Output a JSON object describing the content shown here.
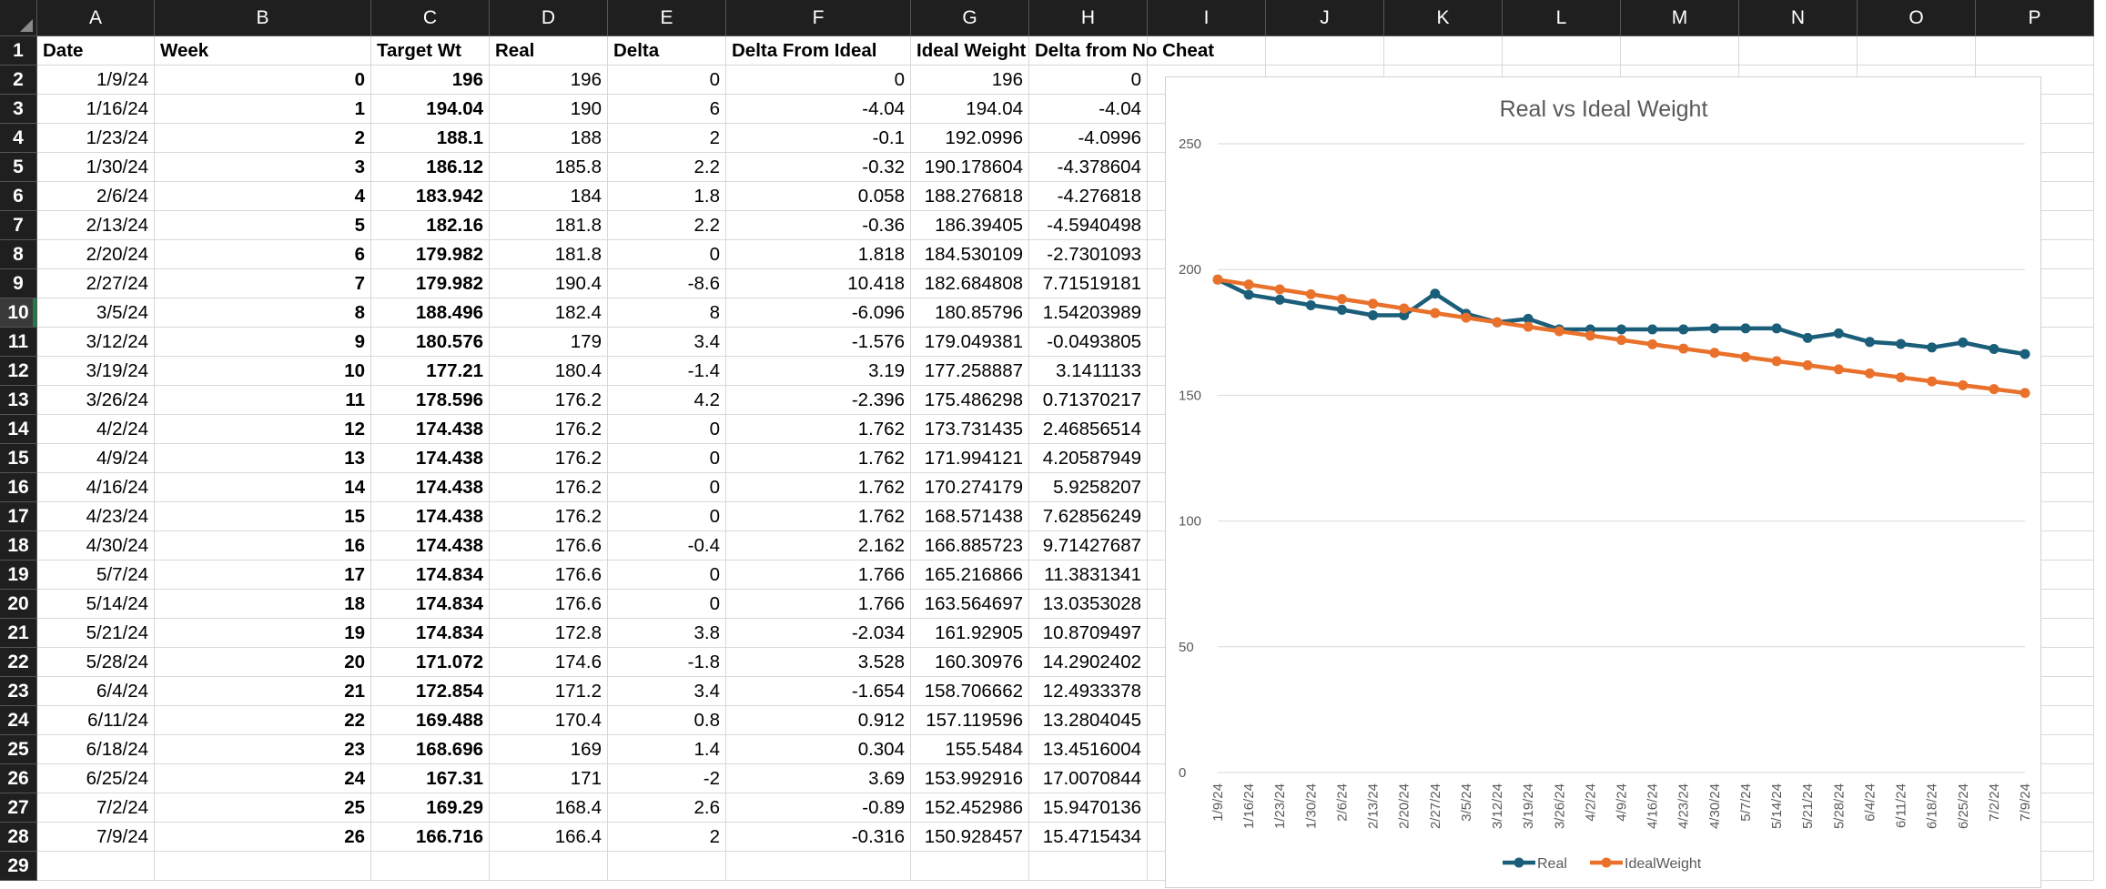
{
  "sheet": {
    "columns": [
      "A",
      "B",
      "C",
      "D",
      "E",
      "F",
      "G",
      "H",
      "I",
      "J",
      "K",
      "L",
      "M",
      "N",
      "O",
      "P"
    ],
    "headers": [
      "Date",
      "Week",
      "Target Wt",
      "Real",
      "Delta",
      "Delta From Ideal",
      "Ideal Weight",
      "Delta from No Cheat"
    ],
    "rows": [
      [
        "1/9/24",
        "0",
        "196",
        "196",
        "0",
        "0",
        "196",
        "0"
      ],
      [
        "1/16/24",
        "1",
        "194.04",
        "190",
        "6",
        "-4.04",
        "194.04",
        "-4.04"
      ],
      [
        "1/23/24",
        "2",
        "188.1",
        "188",
        "2",
        "-0.1",
        "192.0996",
        "-4.0996"
      ],
      [
        "1/30/24",
        "3",
        "186.12",
        "185.8",
        "2.2",
        "-0.32",
        "190.178604",
        "-4.378604"
      ],
      [
        "2/6/24",
        "4",
        "183.942",
        "184",
        "1.8",
        "0.058",
        "188.276818",
        "-4.276818"
      ],
      [
        "2/13/24",
        "5",
        "182.16",
        "181.8",
        "2.2",
        "-0.36",
        "186.39405",
        "-4.5940498"
      ],
      [
        "2/20/24",
        "6",
        "179.982",
        "181.8",
        "0",
        "1.818",
        "184.530109",
        "-2.7301093"
      ],
      [
        "2/27/24",
        "7",
        "179.982",
        "190.4",
        "-8.6",
        "10.418",
        "182.684808",
        "7.71519181"
      ],
      [
        "3/5/24",
        "8",
        "188.496",
        "182.4",
        "8",
        "-6.096",
        "180.85796",
        "1.54203989"
      ],
      [
        "3/12/24",
        "9",
        "180.576",
        "179",
        "3.4",
        "-1.576",
        "179.049381",
        "-0.0493805"
      ],
      [
        "3/19/24",
        "10",
        "177.21",
        "180.4",
        "-1.4",
        "3.19",
        "177.258887",
        "3.1411133"
      ],
      [
        "3/26/24",
        "11",
        "178.596",
        "176.2",
        "4.2",
        "-2.396",
        "175.486298",
        "0.71370217"
      ],
      [
        "4/2/24",
        "12",
        "174.438",
        "176.2",
        "0",
        "1.762",
        "173.731435",
        "2.46856514"
      ],
      [
        "4/9/24",
        "13",
        "174.438",
        "176.2",
        "0",
        "1.762",
        "171.994121",
        "4.20587949"
      ],
      [
        "4/16/24",
        "14",
        "174.438",
        "176.2",
        "0",
        "1.762",
        "170.274179",
        "5.9258207"
      ],
      [
        "4/23/24",
        "15",
        "174.438",
        "176.2",
        "0",
        "1.762",
        "168.571438",
        "7.62856249"
      ],
      [
        "4/30/24",
        "16",
        "174.438",
        "176.6",
        "-0.4",
        "2.162",
        "166.885723",
        "9.71427687"
      ],
      [
        "5/7/24",
        "17",
        "174.834",
        "176.6",
        "0",
        "1.766",
        "165.216866",
        "11.3831341"
      ],
      [
        "5/14/24",
        "18",
        "174.834",
        "176.6",
        "0",
        "1.766",
        "163.564697",
        "13.0353028"
      ],
      [
        "5/21/24",
        "19",
        "174.834",
        "172.8",
        "3.8",
        "-2.034",
        "161.92905",
        "10.8709497"
      ],
      [
        "5/28/24",
        "20",
        "171.072",
        "174.6",
        "-1.8",
        "3.528",
        "160.30976",
        "14.2902402"
      ],
      [
        "6/4/24",
        "21",
        "172.854",
        "171.2",
        "3.4",
        "-1.654",
        "158.706662",
        "12.4933378"
      ],
      [
        "6/11/24",
        "22",
        "169.488",
        "170.4",
        "0.8",
        "0.912",
        "157.119596",
        "13.2804045"
      ],
      [
        "6/18/24",
        "23",
        "168.696",
        "169",
        "1.4",
        "0.304",
        "155.5484",
        "13.4516004"
      ],
      [
        "6/25/24",
        "24",
        "167.31",
        "171",
        "-2",
        "3.69",
        "153.992916",
        "17.0070844"
      ],
      [
        "7/2/24",
        "25",
        "169.29",
        "168.4",
        "2.6",
        "-0.89",
        "152.452986",
        "15.9470136"
      ],
      [
        "7/9/24",
        "26",
        "166.716",
        "166.4",
        "2",
        "-0.316",
        "150.928457",
        "15.4715434"
      ]
    ],
    "selected_row": 10
  },
  "chart_data": {
    "type": "line",
    "title": "Real vs Ideal Weight",
    "categories": [
      "1/9/24",
      "1/16/24",
      "1/23/24",
      "1/30/24",
      "2/6/24",
      "2/13/24",
      "2/20/24",
      "2/27/24",
      "3/5/24",
      "3/12/24",
      "3/19/24",
      "3/26/24",
      "4/2/24",
      "4/9/24",
      "4/16/24",
      "4/23/24",
      "4/30/24",
      "5/7/24",
      "5/14/24",
      "5/21/24",
      "5/28/24",
      "6/4/24",
      "6/11/24",
      "6/18/24",
      "6/25/24",
      "7/2/24",
      "7/9/24"
    ],
    "series": [
      {
        "name": "Real",
        "color": "#1b5e7a",
        "values": [
          196,
          190,
          188,
          185.8,
          184,
          181.8,
          181.8,
          190.4,
          182.4,
          179,
          180.4,
          176.2,
          176.2,
          176.2,
          176.2,
          176.2,
          176.6,
          176.6,
          176.6,
          172.8,
          174.6,
          171.2,
          170.4,
          169,
          171,
          168.4,
          166.4
        ]
      },
      {
        "name": "IdealWeight",
        "color": "#e9712b",
        "values": [
          196,
          194.04,
          192.0996,
          190.178604,
          188.276818,
          186.39405,
          184.530109,
          182.684808,
          180.85796,
          179.049381,
          177.258887,
          175.486298,
          173.731435,
          171.994121,
          170.274179,
          168.571438,
          166.885723,
          165.216866,
          163.564697,
          161.92905,
          160.30976,
          158.706662,
          157.119596,
          155.5484,
          153.992916,
          152.452986,
          150.928457
        ]
      }
    ],
    "ylim": [
      0,
      250
    ],
    "yticks": [
      "0",
      "50",
      "100",
      "150",
      "200",
      "250"
    ],
    "grid": true,
    "legend": "bottom"
  }
}
